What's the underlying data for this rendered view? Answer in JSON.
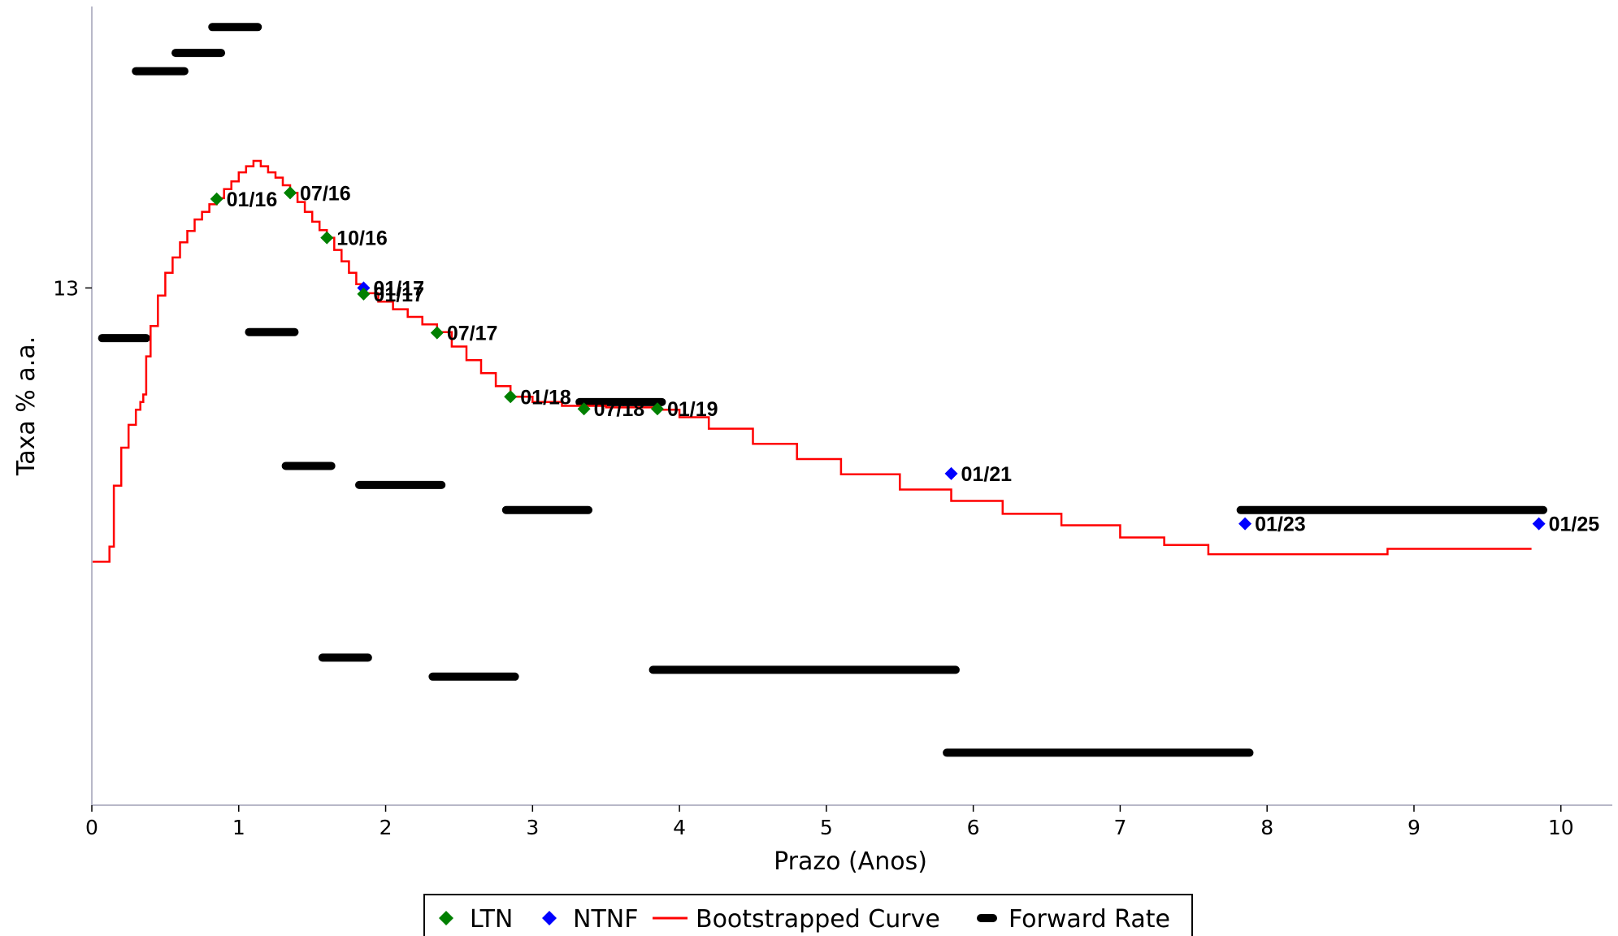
{
  "chart_data": {
    "type": "line",
    "title": "",
    "xlabel": "Prazo (Anos)",
    "ylabel": "Taxa % a.a.",
    "xlim": [
      0,
      10.35
    ],
    "ylim": [
      12.32,
      13.37
    ],
    "x_ticks": [
      0,
      1,
      2,
      3,
      4,
      5,
      6,
      7,
      8,
      9,
      10
    ],
    "y_ticks": [
      13
    ],
    "grid": false,
    "legend": {
      "position": "bottom-center",
      "entries": [
        {
          "label": "LTN",
          "marker": "diamond",
          "color": "#008000"
        },
        {
          "label": "NTNF",
          "marker": "diamond",
          "color": "#0000ff"
        },
        {
          "label": "Bootstrapped Curve",
          "marker": "line",
          "color": "#ff0000"
        },
        {
          "label": "Forward Rate",
          "marker": "bar",
          "color": "#000000"
        }
      ]
    },
    "series": [
      {
        "name": "LTN",
        "type": "scatter",
        "color": "#008000",
        "points": [
          {
            "x": 0.85,
            "y": 13.117,
            "label": "01/16"
          },
          {
            "x": 1.35,
            "y": 13.125,
            "label": "07/16"
          },
          {
            "x": 1.6,
            "y": 13.066,
            "label": "10/16"
          },
          {
            "x": 1.85,
            "y": 12.992,
            "label": "01/17"
          },
          {
            "x": 2.35,
            "y": 12.941,
            "label": "07/17"
          },
          {
            "x": 2.85,
            "y": 12.857,
            "label": "01/18"
          },
          {
            "x": 3.35,
            "y": 12.841,
            "label": "07/18"
          },
          {
            "x": 3.85,
            "y": 12.841,
            "label": "01/19"
          }
        ]
      },
      {
        "name": "NTNF",
        "type": "scatter",
        "color": "#0000ff",
        "points": [
          {
            "x": 1.85,
            "y": 13.0,
            "label": "01/17"
          },
          {
            "x": 5.85,
            "y": 12.756,
            "label": "01/21"
          },
          {
            "x": 7.85,
            "y": 12.69,
            "label": "01/23"
          },
          {
            "x": 9.85,
            "y": 12.69,
            "label": "01/25"
          }
        ]
      },
      {
        "name": "Bootstrapped Curve",
        "type": "line",
        "color": "#ff0000",
        "points": [
          [
            0.0,
            12.64
          ],
          [
            0.1,
            12.64
          ],
          [
            0.12,
            12.66
          ],
          [
            0.15,
            12.74
          ],
          [
            0.2,
            12.79
          ],
          [
            0.25,
            12.82
          ],
          [
            0.3,
            12.84
          ],
          [
            0.33,
            12.85
          ],
          [
            0.35,
            12.86
          ],
          [
            0.37,
            12.91
          ],
          [
            0.4,
            12.95
          ],
          [
            0.45,
            12.99
          ],
          [
            0.5,
            13.02
          ],
          [
            0.55,
            13.04
          ],
          [
            0.6,
            13.06
          ],
          [
            0.65,
            13.075
          ],
          [
            0.7,
            13.09
          ],
          [
            0.75,
            13.1
          ],
          [
            0.8,
            13.11
          ],
          [
            0.85,
            13.118
          ],
          [
            0.9,
            13.13
          ],
          [
            0.95,
            13.14
          ],
          [
            1.0,
            13.152
          ],
          [
            1.05,
            13.16
          ],
          [
            1.1,
            13.167
          ],
          [
            1.15,
            13.16
          ],
          [
            1.2,
            13.152
          ],
          [
            1.25,
            13.145
          ],
          [
            1.3,
            13.135
          ],
          [
            1.35,
            13.125
          ],
          [
            1.4,
            13.113
          ],
          [
            1.45,
            13.1
          ],
          [
            1.5,
            13.087
          ],
          [
            1.55,
            13.076
          ],
          [
            1.6,
            13.066
          ],
          [
            1.65,
            13.05
          ],
          [
            1.7,
            13.035
          ],
          [
            1.75,
            13.02
          ],
          [
            1.8,
            13.005
          ],
          [
            1.85,
            12.993
          ],
          [
            1.95,
            12.982
          ],
          [
            2.05,
            12.972
          ],
          [
            2.15,
            12.962
          ],
          [
            2.25,
            12.952
          ],
          [
            2.35,
            12.942
          ],
          [
            2.45,
            12.923
          ],
          [
            2.55,
            12.905
          ],
          [
            2.65,
            12.888
          ],
          [
            2.75,
            12.871
          ],
          [
            2.85,
            12.857
          ],
          [
            3.0,
            12.85
          ],
          [
            3.2,
            12.845
          ],
          [
            3.5,
            12.843
          ],
          [
            3.85,
            12.84
          ],
          [
            4.0,
            12.83
          ],
          [
            4.2,
            12.815
          ],
          [
            4.5,
            12.795
          ],
          [
            4.8,
            12.775
          ],
          [
            5.1,
            12.755
          ],
          [
            5.5,
            12.735
          ],
          [
            5.85,
            12.72
          ],
          [
            6.2,
            12.703
          ],
          [
            6.6,
            12.688
          ],
          [
            7.0,
            12.672
          ],
          [
            7.3,
            12.662
          ],
          [
            7.6,
            12.65
          ],
          [
            8.0,
            12.65
          ],
          [
            8.8,
            12.65
          ],
          [
            8.82,
            12.657
          ],
          [
            9.5,
            12.657
          ],
          [
            9.8,
            12.657
          ]
        ]
      },
      {
        "name": "Forward Rate",
        "type": "segments",
        "color": "#000000",
        "segments": [
          {
            "x0": 0.07,
            "x1": 0.37,
            "y": 12.934
          },
          {
            "x0": 0.3,
            "x1": 0.63,
            "y": 13.285
          },
          {
            "x0": 0.57,
            "x1": 0.88,
            "y": 13.309
          },
          {
            "x0": 0.82,
            "x1": 1.13,
            "y": 13.343
          },
          {
            "x0": 1.07,
            "x1": 1.38,
            "y": 12.942
          },
          {
            "x0": 1.32,
            "x1": 1.63,
            "y": 12.766
          },
          {
            "x0": 1.57,
            "x1": 1.88,
            "y": 12.514
          },
          {
            "x0": 1.82,
            "x1": 2.38,
            "y": 12.741
          },
          {
            "x0": 2.32,
            "x1": 2.88,
            "y": 12.489
          },
          {
            "x0": 2.82,
            "x1": 3.38,
            "y": 12.708
          },
          {
            "x0": 3.32,
            "x1": 3.88,
            "y": 12.85
          },
          {
            "x0": 3.82,
            "x1": 5.88,
            "y": 12.498
          },
          {
            "x0": 5.82,
            "x1": 7.88,
            "y": 12.389
          },
          {
            "x0": 7.82,
            "x1": 9.88,
            "y": 12.708
          }
        ]
      }
    ]
  }
}
